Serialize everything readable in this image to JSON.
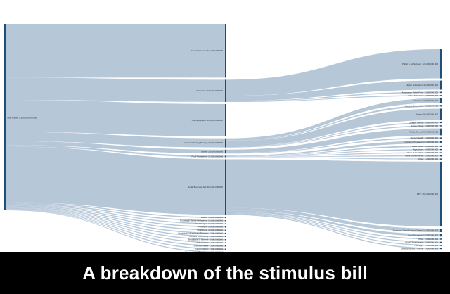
{
  "colors": {
    "link": "#a9bdd1",
    "node": "#1f4e79",
    "label": "#333333",
    "caption_bg": "#000000",
    "caption_fg": "#ffffff"
  },
  "source": {
    "label": "Total Funds: 1,900,000,000,000"
  },
  "middle": [
    {
      "label": "Direct Payments: 411,000,000,000",
      "weight": 411
    },
    {
      "label": "Education: 170,000,000,000",
      "weight": 170
    },
    {
      "label": "Unemployment: 246,000,000,000",
      "weight": 246
    },
    {
      "label": "Vaccines/Testing/Tracing: 70,000,000,000",
      "weight": 70
    },
    {
      "label": "Transit: 30,000,000,000",
      "weight": 30
    },
    {
      "label": "Food Assistance: 12,000,000,000",
      "weight": 12
    },
    {
      "label": "Small Business Aid: 425,000,000,000",
      "weight": 425
    },
    {
      "label": "Health: 15,000,000,000",
      "weight": 8
    },
    {
      "label": "Housing & Rental Assistance: 15,000,000,000",
      "weight": 8
    },
    {
      "label": "Tax Changes: 10,000,000,000",
      "weight": 6
    },
    {
      "label": "Pensions: 10,000,000,000",
      "weight": 6
    },
    {
      "label": "Child Care: 10,000,000,000",
      "weight": 6
    },
    {
      "label": "Emergency Assistance Program: 7,000,000,000",
      "weight": 5
    },
    {
      "label": "Home & Community: 3,000,000,000",
      "weight": 4
    },
    {
      "label": "Broadband & Internet: 3,000,000,000",
      "weight": 4
    },
    {
      "label": "Airline Relief: 1,000,000,000",
      "weight": 4
    },
    {
      "label": "Veterans Affairs: 1,000,000,000",
      "weight": 4
    },
    {
      "label": "Transportation: 1,000,000,000",
      "weight": 4
    },
    {
      "label": "Administrative Provisions: 1,000,000,000",
      "weight": 3
    }
  ],
  "right": [
    {
      "label": "Public K-12 Schools: 128,000,000,000",
      "weight": 128
    },
    {
      "label": "Higher Education: 40,000,000,000",
      "weight": 40
    },
    {
      "label": "Assistance Relief Fund: 5,000,000,000",
      "weight": 5
    },
    {
      "label": "Other Education: 1,000,000,000",
      "weight": 4
    },
    {
      "label": "Vaccines: 20,000,000,000",
      "weight": 20
    },
    {
      "label": "Vaccine Distribution: 7,000,000,000",
      "weight": 7
    },
    {
      "label": "Testing: 50,000,000,000",
      "weight": 50
    },
    {
      "label": "Contact Tracing: 3,000,000,000",
      "weight": 4
    },
    {
      "label": "Supply Chain: 2,000,000,000",
      "weight": 4
    },
    {
      "label": "Public Transit: 30,000,000,000",
      "weight": 30
    },
    {
      "label": "Mental Health: 5,000,000,000",
      "weight": 5
    },
    {
      "label": "Nutrition Programs: 12,000,000,000",
      "weight": 12
    },
    {
      "label": "Food Banks: 6,000,000,000",
      "weight": 6
    },
    {
      "label": "Agriculture: 4,000,000,000",
      "weight": 4
    },
    {
      "label": "State & Local Aid: 3,000,000,000",
      "weight": 4
    },
    {
      "label": "Tribal Governments: 2,000,000,000",
      "weight": 4
    },
    {
      "label": "Other: 1,000,000,000",
      "weight": 4
    },
    {
      "label": "PPP: 284,000,000,000",
      "weight": 284
    },
    {
      "label": "Economic Development Grants: 15,000,000,000",
      "weight": 15
    },
    {
      "label": "Loan Programs: 10,000,000,000",
      "weight": 10
    },
    {
      "label": "Other: 3,000,000,000",
      "weight": 4
    },
    {
      "label": "Rural Development: 2,000,000,000",
      "weight": 4
    },
    {
      "label": "Oversight: 1,000,000,000",
      "weight": 4
    },
    {
      "label": "Other Business Funding: 1,000,000,000",
      "weight": 4
    }
  ],
  "caption": "A breakdown of the stimulus bill"
}
